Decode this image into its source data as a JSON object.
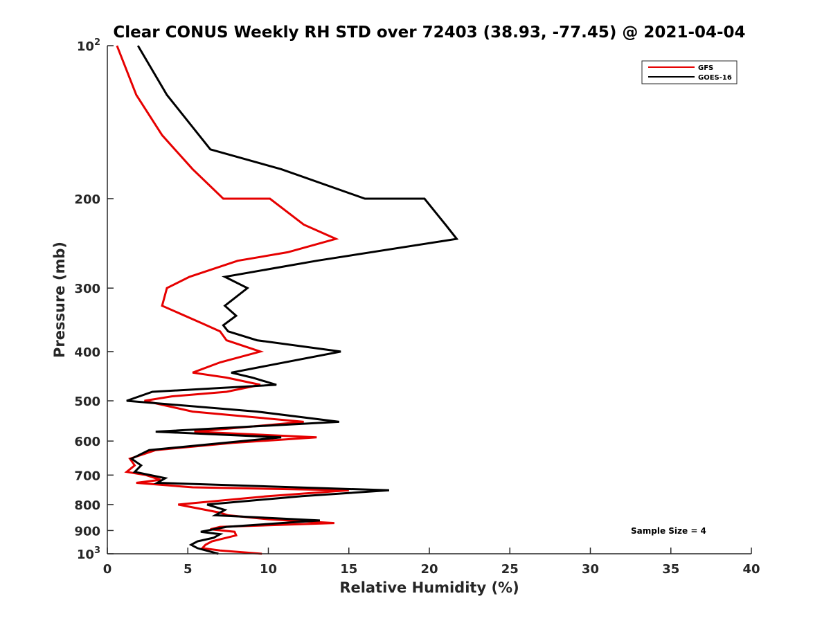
{
  "chart_data": {
    "type": "line",
    "title": "Clear CONUS Weekly RH STD over 72403 (38.93, -77.45) @ 2021-04-04",
    "xlabel": "Relative Humidity (%)",
    "ylabel": "Pressure (mb)",
    "xlim": [
      0,
      40
    ],
    "ylim": [
      100,
      1000
    ],
    "yscale": "log",
    "y_reversed": true,
    "x_ticks": [
      "0",
      "5",
      "10",
      "15",
      "20",
      "25",
      "30",
      "35",
      "40"
    ],
    "y_ticks": [
      {
        "value": 100,
        "label": "10",
        "sup": "2"
      },
      {
        "value": 200,
        "label": "200",
        "sup": ""
      },
      {
        "value": 300,
        "label": "300",
        "sup": ""
      },
      {
        "value": 400,
        "label": "400",
        "sup": ""
      },
      {
        "value": 500,
        "label": "500",
        "sup": ""
      },
      {
        "value": 600,
        "label": "600",
        "sup": ""
      },
      {
        "value": 700,
        "label": "700",
        "sup": ""
      },
      {
        "value": 800,
        "label": "800",
        "sup": ""
      },
      {
        "value": 900,
        "label": "900",
        "sup": ""
      },
      {
        "value": 1000,
        "label": "10",
        "sup": "3"
      }
    ],
    "grid": false,
    "legend_position": "top-right",
    "annotation": "Sample Size = 4",
    "series": [
      {
        "name": "GFS",
        "color": "#e60000",
        "points": [
          [
            0.6,
            100
          ],
          [
            1.8,
            125
          ],
          [
            3.4,
            150
          ],
          [
            5.3,
            175
          ],
          [
            7.2,
            200
          ],
          [
            10.1,
            200
          ],
          [
            12.2,
            225
          ],
          [
            14.2,
            240
          ],
          [
            11.2,
            255
          ],
          [
            8.1,
            265
          ],
          [
            5.1,
            285
          ],
          [
            3.7,
            300
          ],
          [
            3.4,
            325
          ],
          [
            5.9,
            352
          ],
          [
            7.0,
            365
          ],
          [
            7.4,
            380
          ],
          [
            9.5,
            400
          ],
          [
            7.0,
            420
          ],
          [
            5.3,
            440
          ],
          [
            7.4,
            450
          ],
          [
            9.5,
            465
          ],
          [
            7.4,
            480
          ],
          [
            4.0,
            490
          ],
          [
            2.3,
            500
          ],
          [
            5.3,
            525
          ],
          [
            12.2,
            550
          ],
          [
            5.4,
            575
          ],
          [
            13.0,
            590
          ],
          [
            7.8,
            605
          ],
          [
            3.0,
            625
          ],
          [
            1.4,
            650
          ],
          [
            1.7,
            670
          ],
          [
            1.2,
            690
          ],
          [
            2.4,
            700
          ],
          [
            3.3,
            715
          ],
          [
            1.8,
            725
          ],
          [
            5.3,
            740
          ],
          [
            15.0,
            750
          ],
          [
            10.0,
            770
          ],
          [
            4.4,
            800
          ],
          [
            7.0,
            830
          ],
          [
            7.5,
            840
          ],
          [
            10.0,
            855
          ],
          [
            14.1,
            870
          ],
          [
            7.0,
            885
          ],
          [
            6.4,
            895
          ],
          [
            7.9,
            905
          ],
          [
            8.0,
            920
          ],
          [
            7.1,
            935
          ],
          [
            6.5,
            945
          ],
          [
            6.1,
            960
          ],
          [
            5.9,
            975
          ],
          [
            7.0,
            985
          ],
          [
            9.6,
            1000
          ]
        ]
      },
      {
        "name": "GOES-16",
        "color": "#000000",
        "points": [
          [
            1.9,
            100
          ],
          [
            3.7,
            125
          ],
          [
            6.4,
            160
          ],
          [
            10.8,
            175
          ],
          [
            16.0,
            200
          ],
          [
            19.7,
            200
          ],
          [
            21.0,
            225
          ],
          [
            21.7,
            240
          ],
          [
            13.0,
            265
          ],
          [
            7.3,
            285
          ],
          [
            8.7,
            300
          ],
          [
            7.3,
            325
          ],
          [
            8.0,
            340
          ],
          [
            7.2,
            355
          ],
          [
            7.5,
            365
          ],
          [
            9.3,
            380
          ],
          [
            14.5,
            400
          ],
          [
            7.7,
            440
          ],
          [
            9.0,
            450
          ],
          [
            10.5,
            465
          ],
          [
            2.8,
            480
          ],
          [
            1.2,
            500
          ],
          [
            9.3,
            525
          ],
          [
            14.4,
            550
          ],
          [
            3.0,
            575
          ],
          [
            10.8,
            590
          ],
          [
            2.6,
            625
          ],
          [
            1.5,
            650
          ],
          [
            2.1,
            670
          ],
          [
            1.7,
            690
          ],
          [
            3.6,
            710
          ],
          [
            3.1,
            725
          ],
          [
            17.5,
            750
          ],
          [
            12.1,
            770
          ],
          [
            6.2,
            800
          ],
          [
            7.3,
            820
          ],
          [
            6.7,
            840
          ],
          [
            13.2,
            860
          ],
          [
            7.4,
            885
          ],
          [
            5.8,
            905
          ],
          [
            7.0,
            915
          ],
          [
            6.6,
            930
          ],
          [
            5.6,
            945
          ],
          [
            5.2,
            960
          ],
          [
            5.6,
            975
          ],
          [
            6.9,
            1000
          ]
        ]
      }
    ]
  }
}
